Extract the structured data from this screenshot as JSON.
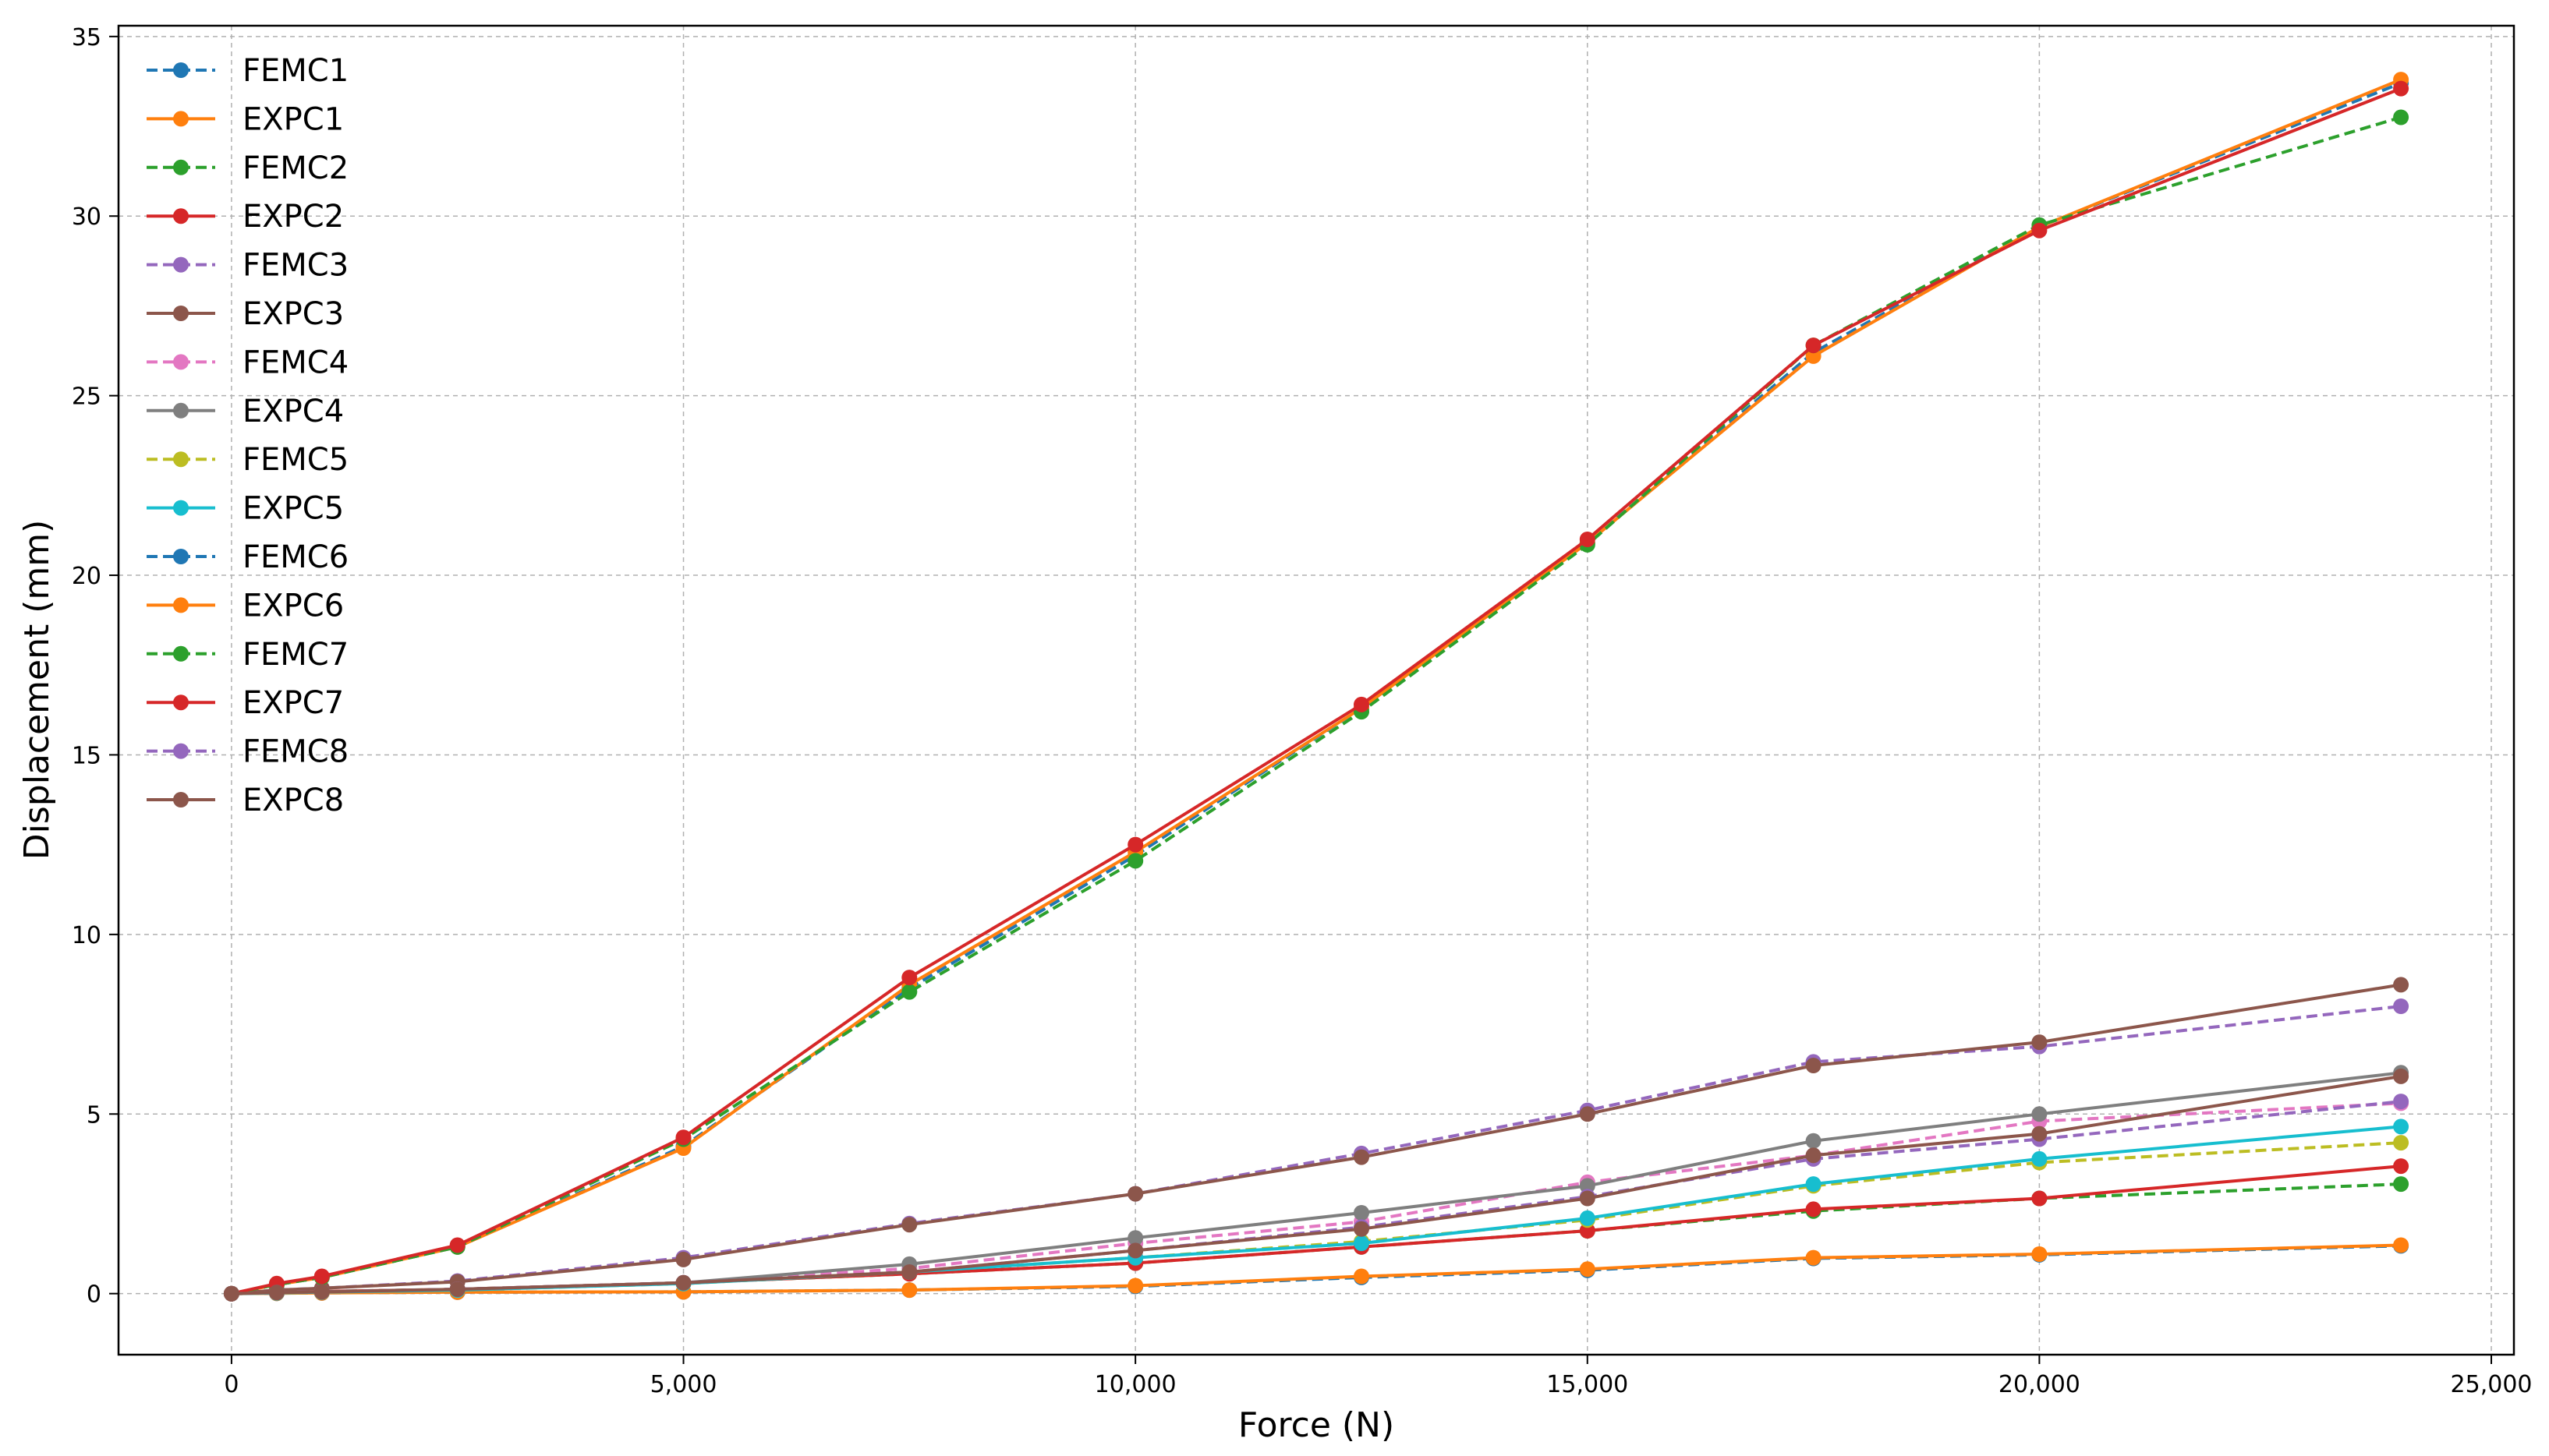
{
  "chart_data": {
    "type": "line",
    "title": "",
    "xlabel": "Force (N)",
    "ylabel": "Displacement (mm)",
    "xlim": [
      -1250,
      25250
    ],
    "ylim": [
      -1.7,
      35.3
    ],
    "xticks": [
      0,
      5000,
      10000,
      15000,
      20000,
      25000
    ],
    "xtick_labels": [
      "0",
      "5,000",
      "10,000",
      "15,000",
      "20,000",
      "25,000"
    ],
    "yticks": [
      0,
      5,
      10,
      15,
      20,
      25,
      30,
      35
    ],
    "ytick_labels": [
      "0",
      "5",
      "10",
      "15",
      "20",
      "25",
      "30",
      "35"
    ],
    "grid": true,
    "legend_position": "upper-left",
    "series": [
      {
        "name": "FEMC1",
        "color": "#1f77b4",
        "dashed": true,
        "x": [
          0,
          500,
          1000,
          2500,
          5000,
          7500,
          10000,
          12500,
          15000,
          17500,
          20000,
          24000
        ],
        "y": [
          0,
          0.01,
          0.02,
          0.04,
          0.05,
          0.1,
          0.2,
          0.45,
          0.65,
          0.98,
          1.08,
          1.33
        ]
      },
      {
        "name": "EXPC1",
        "color": "#ff7f0e",
        "dashed": false,
        "x": [
          0,
          500,
          1000,
          2500,
          5000,
          7500,
          10000,
          12500,
          15000,
          17500,
          20000,
          24000
        ],
        "y": [
          0,
          0.01,
          0.02,
          0.04,
          0.05,
          0.1,
          0.22,
          0.48,
          0.68,
          1.0,
          1.1,
          1.35
        ]
      },
      {
        "name": "FEMC2",
        "color": "#2ca02c",
        "dashed": true,
        "x": [
          0,
          500,
          1000,
          2500,
          5000,
          7500,
          10000,
          12500,
          15000,
          17500,
          20000,
          24000
        ],
        "y": [
          0,
          0.03,
          0.06,
          0.12,
          0.3,
          0.55,
          0.85,
          1.3,
          1.75,
          2.3,
          2.65,
          3.05
        ]
      },
      {
        "name": "EXPC2",
        "color": "#d62728",
        "dashed": false,
        "x": [
          0,
          500,
          1000,
          2500,
          5000,
          7500,
          10000,
          12500,
          15000,
          17500,
          20000,
          24000
        ],
        "y": [
          0,
          0.03,
          0.06,
          0.12,
          0.3,
          0.55,
          0.85,
          1.3,
          1.75,
          2.35,
          2.65,
          3.55
        ]
      },
      {
        "name": "FEMC3",
        "color": "#9467bd",
        "dashed": true,
        "x": [
          0,
          500,
          1000,
          2500,
          5000,
          7500,
          10000,
          12500,
          15000,
          17500,
          20000,
          24000
        ],
        "y": [
          0,
          0.1,
          0.15,
          0.35,
          1.0,
          1.95,
          2.78,
          3.9,
          5.1,
          6.45,
          6.88,
          8.0
        ]
      },
      {
        "name": "EXPC3",
        "color": "#8c564b",
        "dashed": false,
        "x": [
          0,
          500,
          1000,
          2500,
          5000,
          7500,
          10000,
          12500,
          15000,
          17500,
          20000,
          24000
        ],
        "y": [
          0,
          0.1,
          0.15,
          0.33,
          0.95,
          1.92,
          2.78,
          3.8,
          5.0,
          6.35,
          7.0,
          8.6
        ]
      },
      {
        "name": "FEMC4",
        "color": "#e377c2",
        "dashed": true,
        "x": [
          0,
          500,
          1000,
          2500,
          5000,
          7500,
          10000,
          12500,
          15000,
          17500,
          20000,
          24000
        ],
        "y": [
          0,
          0.03,
          0.05,
          0.12,
          0.3,
          0.7,
          1.4,
          2.0,
          3.1,
          3.85,
          4.8,
          5.3
        ]
      },
      {
        "name": "EXPC4",
        "color": "#7f7f7f",
        "dashed": false,
        "x": [
          0,
          500,
          1000,
          2500,
          5000,
          7500,
          10000,
          12500,
          15000,
          17500,
          20000,
          24000
        ],
        "y": [
          0,
          0.03,
          0.05,
          0.12,
          0.3,
          0.82,
          1.55,
          2.25,
          3.0,
          4.25,
          5.0,
          6.15
        ]
      },
      {
        "name": "FEMC5",
        "color": "#bcbd22",
        "dashed": true,
        "x": [
          0,
          500,
          1000,
          2500,
          5000,
          7500,
          10000,
          12500,
          15000,
          17500,
          20000,
          24000
        ],
        "y": [
          0,
          0.02,
          0.04,
          0.1,
          0.28,
          0.6,
          1.0,
          1.45,
          2.05,
          3.0,
          3.65,
          4.2
        ]
      },
      {
        "name": "EXPC5",
        "color": "#17becf",
        "dashed": false,
        "x": [
          0,
          500,
          1000,
          2500,
          5000,
          7500,
          10000,
          12500,
          15000,
          17500,
          20000,
          24000
        ],
        "y": [
          0,
          0.02,
          0.04,
          0.1,
          0.28,
          0.6,
          1.0,
          1.4,
          2.1,
          3.05,
          3.75,
          4.65
        ]
      },
      {
        "name": "FEMC6",
        "color": "#1f77b4",
        "dashed": true,
        "x": [
          0,
          500,
          1000,
          2500,
          5000,
          7500,
          10000,
          12500,
          15000,
          17500,
          20000,
          24000
        ],
        "y": [
          0,
          0.25,
          0.45,
          1.3,
          4.1,
          8.5,
          12.2,
          16.3,
          20.9,
          26.2,
          29.7,
          33.7
        ]
      },
      {
        "name": "EXPC6",
        "color": "#ff7f0e",
        "dashed": false,
        "x": [
          0,
          500,
          1000,
          2500,
          5000,
          7500,
          10000,
          12500,
          15000,
          17500,
          20000,
          24000
        ],
        "y": [
          0,
          0.25,
          0.45,
          1.3,
          4.05,
          8.6,
          12.3,
          16.3,
          20.9,
          26.1,
          29.7,
          33.8
        ]
      },
      {
        "name": "FEMC7",
        "color": "#2ca02c",
        "dashed": true,
        "x": [
          0,
          500,
          1000,
          2500,
          5000,
          7500,
          10000,
          12500,
          15000,
          17500,
          20000,
          24000
        ],
        "y": [
          0,
          0.25,
          0.45,
          1.3,
          4.3,
          8.4,
          12.05,
          16.2,
          20.85,
          26.4,
          29.75,
          32.75
        ]
      },
      {
        "name": "EXPC7",
        "color": "#d62728",
        "dashed": false,
        "x": [
          0,
          500,
          1000,
          2500,
          5000,
          7500,
          10000,
          12500,
          15000,
          17500,
          20000,
          24000
        ],
        "y": [
          0,
          0.28,
          0.48,
          1.35,
          4.35,
          8.8,
          12.5,
          16.4,
          21.0,
          26.4,
          29.6,
          33.55
        ]
      },
      {
        "name": "FEMC8",
        "color": "#9467bd",
        "dashed": true,
        "x": [
          0,
          500,
          1000,
          2500,
          5000,
          7500,
          10000,
          12500,
          15000,
          17500,
          20000,
          24000
        ],
        "y": [
          0,
          0.03,
          0.05,
          0.12,
          0.3,
          0.6,
          1.2,
          1.85,
          2.7,
          3.75,
          4.3,
          5.35
        ]
      },
      {
        "name": "EXPC8",
        "color": "#8c564b",
        "dashed": false,
        "x": [
          0,
          500,
          1000,
          2500,
          5000,
          7500,
          10000,
          12500,
          15000,
          17500,
          20000,
          24000
        ],
        "y": [
          0,
          0.03,
          0.05,
          0.12,
          0.3,
          0.6,
          1.2,
          1.8,
          2.65,
          3.85,
          4.45,
          6.05
        ]
      }
    ]
  }
}
